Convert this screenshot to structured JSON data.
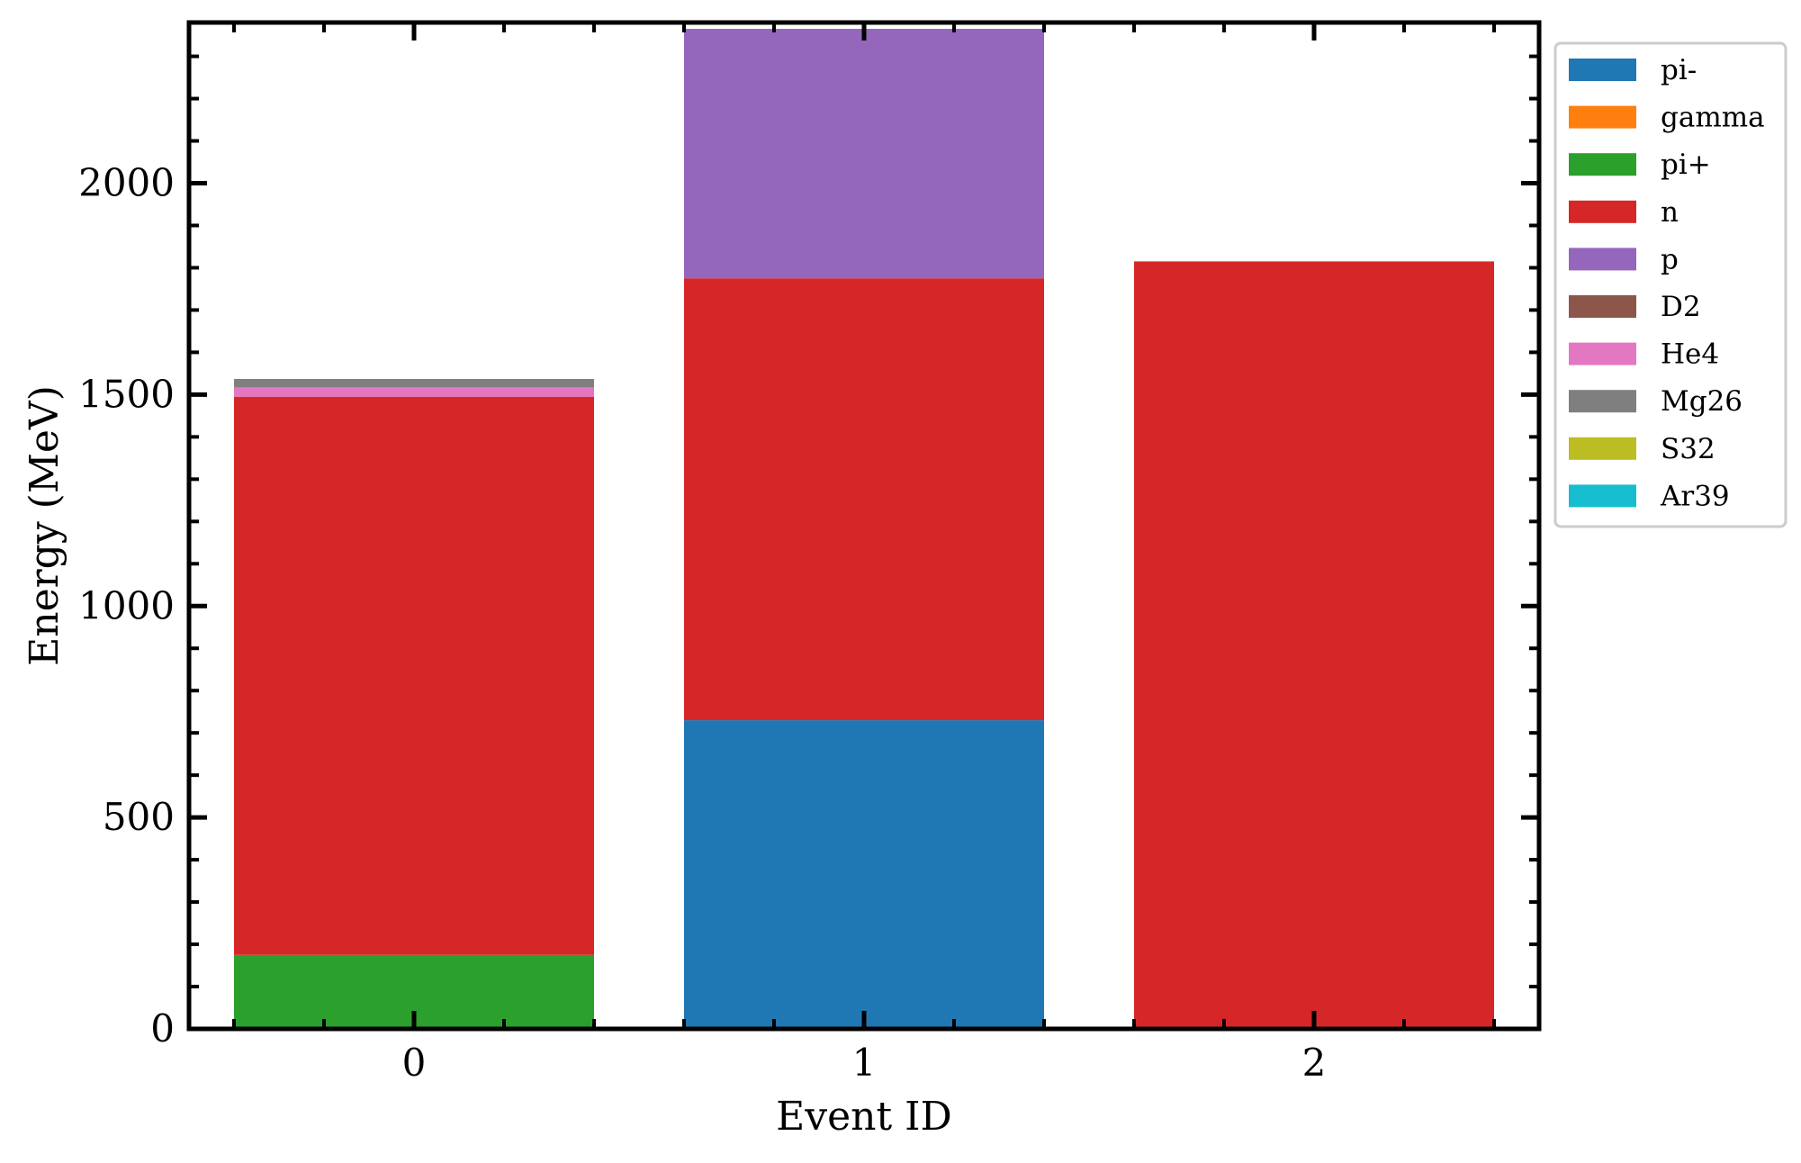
{
  "chart_data": {
    "type": "bar",
    "stacked": true,
    "xlabel": "Event ID",
    "ylabel": "Energy (MeV)",
    "categories": [
      "0",
      "1",
      "2"
    ],
    "ylim": [
      0,
      2380
    ],
    "yticks": [
      0,
      500,
      1000,
      1500,
      2000
    ],
    "legend_position": "outside-right-top",
    "grid": false,
    "series": [
      {
        "name": "pi-",
        "color": "#1f77b4",
        "values": [
          0,
          730,
          0
        ]
      },
      {
        "name": "gamma",
        "color": "#ff7f0e",
        "values": [
          0,
          0,
          0
        ]
      },
      {
        "name": "pi+",
        "color": "#2ca02c",
        "values": [
          175,
          0,
          0
        ]
      },
      {
        "name": "n",
        "color": "#d62728",
        "values": [
          1320,
          1045,
          1815
        ]
      },
      {
        "name": "p",
        "color": "#9467bd",
        "values": [
          0,
          590,
          0
        ]
      },
      {
        "name": "D2",
        "color": "#8c564b",
        "values": [
          0,
          0,
          0
        ]
      },
      {
        "name": "He4",
        "color": "#e377c2",
        "values": [
          22,
          0,
          0
        ]
      },
      {
        "name": "Mg26",
        "color": "#7f7f7f",
        "values": [
          20,
          0,
          0
        ]
      },
      {
        "name": "S32",
        "color": "#bcbd22",
        "values": [
          0,
          0,
          0
        ]
      },
      {
        "name": "Ar39",
        "color": "#17becf",
        "values": [
          0,
          0,
          0
        ]
      }
    ]
  }
}
